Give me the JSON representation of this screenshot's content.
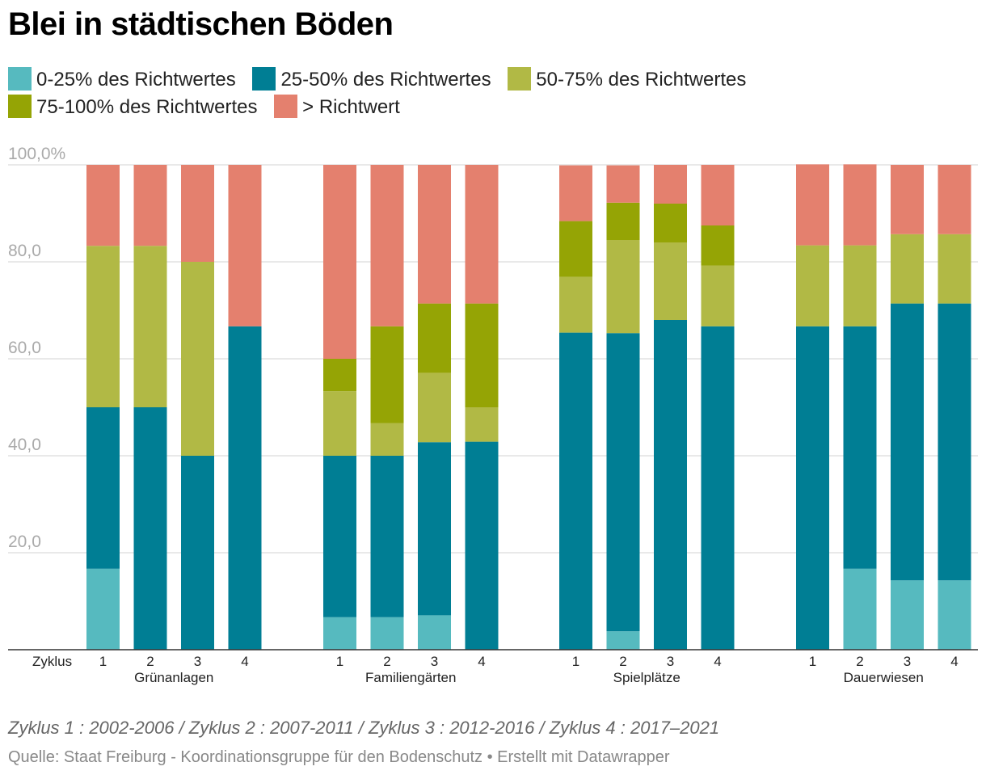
{
  "title": "Blei in städtischen Böden",
  "legend": [
    {
      "label": "0-25% des Richtwertes",
      "color": "#56babf"
    },
    {
      "label": "25-50% des Richtwertes",
      "color": "#007e94"
    },
    {
      "label": "50-75% des Richtwertes",
      "color": "#b1b945"
    },
    {
      "label": "75-100% des Richtwertes",
      "color": "#95a405"
    },
    {
      "label": "> Richtwert",
      "color": "#e4806e"
    }
  ],
  "chart_data": {
    "type": "bar",
    "stacked": true,
    "x_prefix_label": "Zyklus",
    "y_ticks": [
      "20,0",
      "40,0",
      "60,0",
      "80,0",
      "100,0%"
    ],
    "ylim": [
      0,
      100
    ],
    "groups": [
      {
        "name": "Grünanlagen",
        "cycles": [
          "1",
          "2",
          "3",
          "4"
        ],
        "values": [
          [
            16.7,
            33.3,
            33.3,
            0,
            16.7
          ],
          [
            0,
            50,
            33.3,
            0,
            16.7
          ],
          [
            0,
            40,
            40,
            0,
            20
          ],
          [
            0,
            66.7,
            0,
            0,
            33.3
          ]
        ]
      },
      {
        "name": "Familiengärten",
        "cycles": [
          "1",
          "2",
          "3",
          "4"
        ],
        "values": [
          [
            6.7,
            33.3,
            13.3,
            6.7,
            40
          ],
          [
            6.7,
            33.3,
            6.7,
            20,
            33.3
          ],
          [
            7.1,
            35.7,
            14.3,
            14.3,
            28.6
          ],
          [
            0,
            42.9,
            7.1,
            21.4,
            28.6
          ]
        ]
      },
      {
        "name": "Spielplätze",
        "cycles": [
          "1",
          "2",
          "3",
          "4"
        ],
        "values": [
          [
            0,
            65.4,
            11.5,
            11.5,
            11.5
          ],
          [
            3.8,
            61.5,
            19.2,
            7.7,
            7.7
          ],
          [
            0,
            68,
            16,
            8,
            8
          ],
          [
            0,
            66.7,
            12.5,
            8.3,
            12.5
          ]
        ]
      },
      {
        "name": "Dauerwiesen",
        "cycles": [
          "1",
          "2",
          "3",
          "4"
        ],
        "values": [
          [
            0,
            66.7,
            16.7,
            0,
            16.7
          ],
          [
            16.7,
            50,
            16.7,
            0,
            16.7
          ],
          [
            14.3,
            57.1,
            14.3,
            0,
            14.3
          ],
          [
            14.3,
            57.1,
            14.3,
            0,
            14.3
          ]
        ]
      }
    ]
  },
  "footnote": "Zyklus 1 : 2002-2006 / Zyklus 2 : 2007-2011 / Zyklus 3 : 2012-2016 / Zyklus 4 : 2017–2021",
  "source": "Quelle: Staat Freiburg - Koordinationsgruppe für den Bodenschutz • Erstellt mit Datawrapper"
}
